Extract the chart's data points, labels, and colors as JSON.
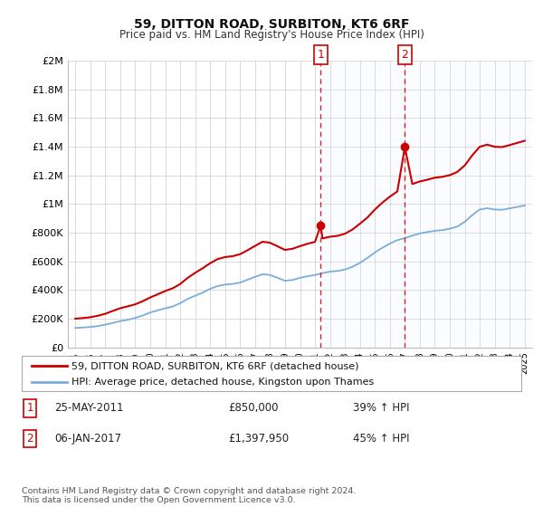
{
  "title": "59, DITTON ROAD, SURBITON, KT6 6RF",
  "subtitle": "Price paid vs. HM Land Registry's House Price Index (HPI)",
  "legend_label_red": "59, DITTON ROAD, SURBITON, KT6 6RF (detached house)",
  "legend_label_blue": "HPI: Average price, detached house, Kingston upon Thames",
  "transaction1_label": "1",
  "transaction1_date": "25-MAY-2011",
  "transaction1_price": "£850,000",
  "transaction1_hpi": "39% ↑ HPI",
  "transaction2_label": "2",
  "transaction2_date": "06-JAN-2017",
  "transaction2_price": "£1,397,950",
  "transaction2_hpi": "45% ↑ HPI",
  "footer": "Contains HM Land Registry data © Crown copyright and database right 2024.\nThis data is licensed under the Open Government Licence v3.0.",
  "ylim": [
    0,
    2000000
  ],
  "yticks": [
    0,
    200000,
    400000,
    600000,
    800000,
    1000000,
    1200000,
    1400000,
    1600000,
    1800000,
    2000000
  ],
  "ytick_labels": [
    "£0",
    "£200K",
    "£400K",
    "£600K",
    "£800K",
    "£1M",
    "£1.2M",
    "£1.4M",
    "£1.6M",
    "£1.8M",
    "£2M"
  ],
  "red_color": "#cc0000",
  "blue_color": "#7aaddb",
  "blue_fill": "#ddeeff",
  "vline_color": "#cc0000",
  "background_color": "#ffffff",
  "grid_color": "#cccccc",
  "transaction1_x": 2011.38,
  "transaction2_x": 2017.0,
  "transaction1_y": 850000,
  "transaction2_y": 1397950,
  "xmin": 1994.5,
  "xmax": 2025.5,
  "shade_x_start": 2011.38,
  "shade_x_end": 2025.5,
  "hpi_years": [
    1995.0,
    1995.5,
    1996.0,
    1996.5,
    1997.0,
    1997.5,
    1998.0,
    1998.5,
    1999.0,
    1999.5,
    2000.0,
    2000.5,
    2001.0,
    2001.5,
    2002.0,
    2002.5,
    2003.0,
    2003.5,
    2004.0,
    2004.5,
    2005.0,
    2005.5,
    2006.0,
    2006.5,
    2007.0,
    2007.5,
    2008.0,
    2008.5,
    2009.0,
    2009.5,
    2010.0,
    2010.5,
    2011.0,
    2011.5,
    2012.0,
    2012.5,
    2013.0,
    2013.5,
    2014.0,
    2014.5,
    2015.0,
    2015.5,
    2016.0,
    2016.5,
    2017.0,
    2017.5,
    2018.0,
    2018.5,
    2019.0,
    2019.5,
    2020.0,
    2020.5,
    2021.0,
    2021.5,
    2022.0,
    2022.5,
    2023.0,
    2023.5,
    2024.0,
    2024.5,
    2025.0
  ],
  "hpi_values": [
    135000,
    138000,
    142000,
    148000,
    158000,
    170000,
    183000,
    192000,
    205000,
    222000,
    243000,
    258000,
    272000,
    285000,
    308000,
    338000,
    360000,
    382000,
    408000,
    428000,
    438000,
    442000,
    452000,
    472000,
    492000,
    510000,
    505000,
    485000,
    465000,
    470000,
    485000,
    496000,
    505000,
    518000,
    528000,
    533000,
    543000,
    562000,
    590000,
    624000,
    662000,
    695000,
    724000,
    748000,
    762000,
    780000,
    795000,
    805000,
    813000,
    818000,
    828000,
    843000,
    876000,
    923000,
    962000,
    971000,
    962000,
    960000,
    970000,
    980000,
    990000
  ],
  "prop_years": [
    1995.0,
    1995.5,
    1996.0,
    1996.5,
    1997.0,
    1997.5,
    1998.0,
    1998.5,
    1999.0,
    1999.5,
    2000.0,
    2000.5,
    2001.0,
    2001.5,
    2002.0,
    2002.5,
    2003.0,
    2003.5,
    2004.0,
    2004.5,
    2005.0,
    2005.5,
    2006.0,
    2006.5,
    2007.0,
    2007.5,
    2008.0,
    2008.5,
    2009.0,
    2009.5,
    2010.0,
    2010.5,
    2011.0,
    2011.38,
    2011.5,
    2012.0,
    2012.5,
    2013.0,
    2013.5,
    2014.0,
    2014.5,
    2015.0,
    2015.5,
    2016.0,
    2016.5,
    2017.0,
    2017.5,
    2018.0,
    2018.5,
    2019.0,
    2019.5,
    2020.0,
    2020.5,
    2021.0,
    2021.5,
    2022.0,
    2022.5,
    2023.0,
    2023.5,
    2024.0,
    2024.5,
    2025.0
  ],
  "prop_values": [
    200000,
    204000,
    210000,
    220000,
    234000,
    254000,
    273000,
    286000,
    300000,
    322000,
    348000,
    370000,
    393000,
    412000,
    442000,
    485000,
    520000,
    552000,
    587000,
    616000,
    630000,
    636000,
    650000,
    678000,
    708000,
    737000,
    730000,
    705000,
    680000,
    688000,
    706000,
    723000,
    736000,
    850000,
    760000,
    772000,
    778000,
    793000,
    822000,
    863000,
    906000,
    962000,
    1010000,
    1052000,
    1088000,
    1397950,
    1140000,
    1158000,
    1170000,
    1184000,
    1190000,
    1202000,
    1224000,
    1270000,
    1340000,
    1400000,
    1415000,
    1400000,
    1398000,
    1412000,
    1427000,
    1442000
  ]
}
